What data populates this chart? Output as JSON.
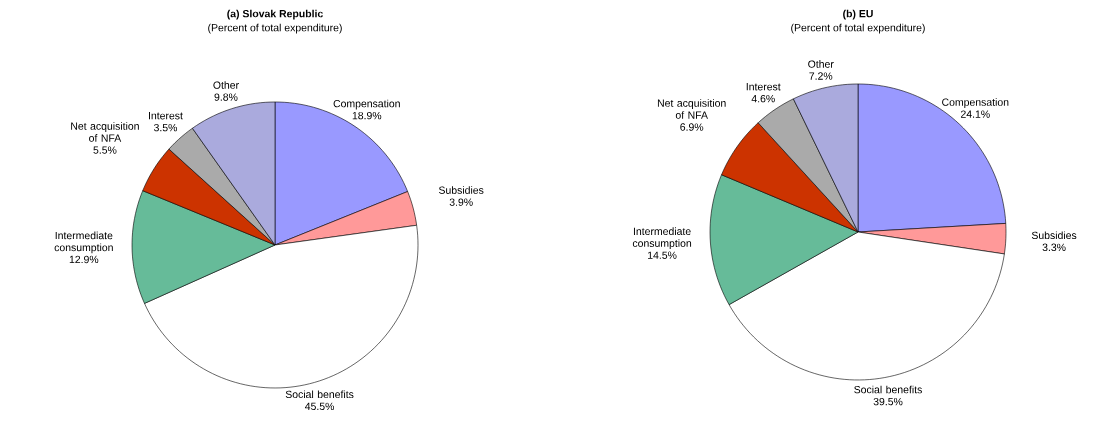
{
  "chart_data": [
    {
      "type": "pie",
      "title": "(a) Slovak Republic",
      "subtitle": "(Percent of total expenditure)",
      "categories": [
        "Compensation",
        "Subsidies",
        "Social benefits",
        "Intermediate consumption",
        "Net acquisition of NFA",
        "Interest",
        "Other"
      ],
      "values": [
        18.9,
        3.9,
        45.5,
        12.9,
        5.5,
        3.5,
        9.8
      ],
      "value_labels": [
        "18.9%",
        "3.9%",
        "45.5%",
        "12.9%",
        "5.5%",
        "3.5%",
        "9.8%"
      ],
      "colors": [
        "#9999ff",
        "#ff9999",
        "#ffffff",
        "#66bb99",
        "#cc3300",
        "#aaaaaa",
        "#aaaadd"
      ]
    },
    {
      "type": "pie",
      "title": "(b) EU",
      "subtitle": "(Percent of total expenditure)",
      "categories": [
        "Compensation",
        "Subsidies",
        "Social benefits",
        "Intermediate consumption",
        "Net acquisition of NFA",
        "Interest",
        "Other"
      ],
      "values": [
        24.1,
        3.3,
        39.5,
        14.5,
        6.9,
        4.6,
        7.2
      ],
      "value_labels": [
        "24.1%",
        "3.3%",
        "39.5%",
        "14.5%",
        "6.9%",
        "4.6%",
        "7.2%"
      ],
      "colors": [
        "#9999ff",
        "#ff9999",
        "#ffffff",
        "#66bb99",
        "#cc3300",
        "#aaaaaa",
        "#aaaadd"
      ]
    }
  ]
}
